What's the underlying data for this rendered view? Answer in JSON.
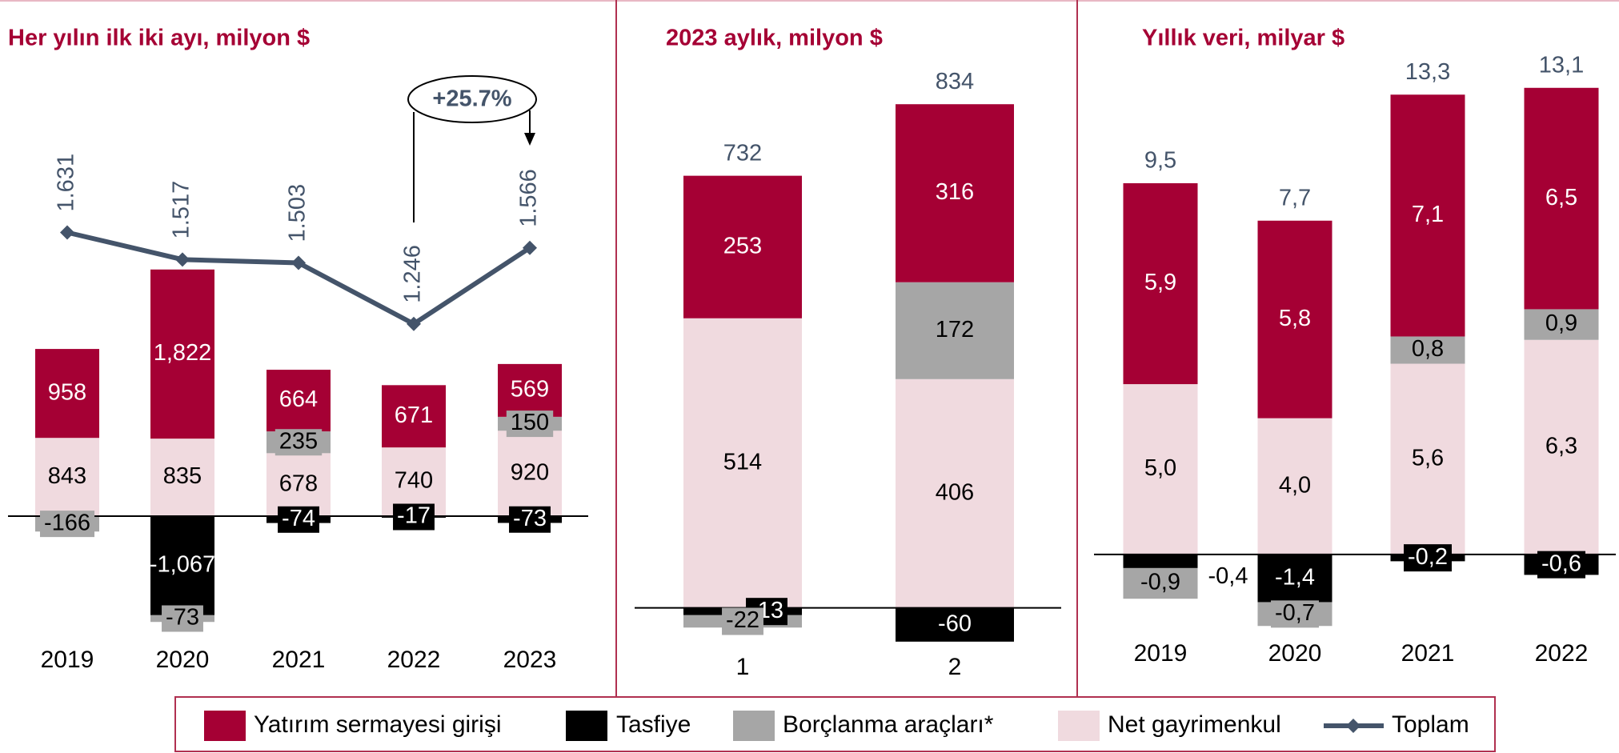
{
  "chart_data": [
    {
      "type": "bar",
      "title": "Her yılın ilk iki ayı, milyon $",
      "categories": [
        "2019",
        "2020",
        "2021",
        "2022",
        "2023"
      ],
      "series": [
        {
          "name": "Yatırım sermayesi girişi",
          "color": "#a50034",
          "values": [
            958,
            1822,
            664,
            671,
            569
          ],
          "value_labels": [
            "958",
            "1,822",
            "664",
            "671",
            "569"
          ]
        },
        {
          "name": "Tasfiye",
          "color": "#000000",
          "values": [
            null,
            -1067,
            -74,
            -17,
            -73
          ],
          "value_labels": [
            null,
            "-1,067",
            "-74",
            "-17",
            "-73"
          ]
        },
        {
          "name": "Borçlanma araçları*",
          "color": "#a6a6a6",
          "values": [
            -166,
            -73,
            235,
            null,
            150
          ]
        },
        {
          "name": "Net gayrimenkul",
          "color": "#f0dadf",
          "values": [
            843,
            835,
            678,
            740,
            920
          ]
        },
        {
          "name": "Toplam",
          "color": "#44546a",
          "type": "line",
          "axis": "y2",
          "values": [
            1631,
            1517,
            1503,
            1246,
            1566
          ],
          "value_labels": [
            "1.631",
            "1.517",
            "1.503",
            "1.246",
            "1.566"
          ]
        }
      ],
      "ylim": [
        -1500,
        4000
      ],
      "y2lim": [
        -150,
        2000
      ],
      "annotation": "+25.7%"
    },
    {
      "type": "bar",
      "title": "2023 aylık, milyon $",
      "categories": [
        "1",
        "2"
      ],
      "series": [
        {
          "name": "Yatırım sermayesi girişi",
          "color": "#a50034",
          "values": [
            253,
            316
          ]
        },
        {
          "name": "Tasfiye",
          "color": "#000000",
          "values": [
            -13,
            -60
          ]
        },
        {
          "name": "Borçlanma araçları*",
          "color": "#a6a6a6",
          "values": [
            -22,
            172
          ]
        },
        {
          "name": "Net gayrimenkul",
          "color": "#f0dadf",
          "values": [
            514,
            406
          ]
        }
      ],
      "totals": [
        732,
        834
      ],
      "ylim": [
        -100,
        900
      ]
    },
    {
      "type": "bar",
      "title": "Yıllık veri, milyar $",
      "categories": [
        "2019",
        "2020",
        "2021",
        "2022"
      ],
      "series": [
        {
          "name": "Yatırım sermayesi girişi",
          "color": "#a50034",
          "values": [
            5.9,
            5.8,
            7.1,
            6.5
          ],
          "value_labels": [
            "5,9",
            "5,8",
            "7,1",
            "6,5"
          ]
        },
        {
          "name": "Tasfiye",
          "color": "#000000",
          "values": [
            -0.4,
            -1.4,
            -0.2,
            -0.6
          ],
          "value_labels": [
            "-0,4",
            "-1,4",
            "-0,2",
            "-0,6"
          ]
        },
        {
          "name": "Borçlanma araçları*",
          "color": "#a6a6a6",
          "values": [
            -0.9,
            -0.7,
            0.8,
            0.9
          ],
          "value_labels": [
            "-0,9",
            "-0,7",
            "0,8",
            "0,9"
          ]
        },
        {
          "name": "Net gayrimenkul",
          "color": "#f0dadf",
          "values": [
            5.0,
            4.0,
            5.6,
            6.3
          ],
          "value_labels": [
            "5,0",
            "4,0",
            "5,6",
            "6,3"
          ]
        }
      ],
      "totals": [
        9.5,
        7.7,
        13.3,
        13.1
      ],
      "total_labels": [
        "9,5",
        "7,7",
        "13,3",
        "13,1"
      ],
      "ylim": [
        -2,
        14
      ]
    }
  ]
}
